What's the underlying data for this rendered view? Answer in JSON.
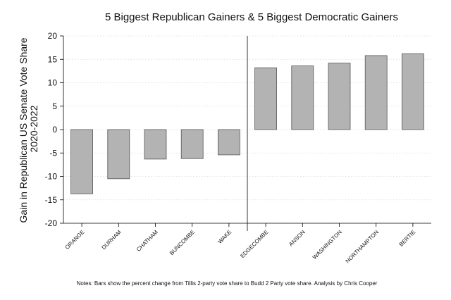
{
  "chart_data": {
    "type": "bar",
    "title": "5 Biggest Republican Gainers & 5 Biggest Democratic Gainers",
    "ylabel": [
      "Gain in Republican US Senate Vote Share",
      "2020-2022"
    ],
    "xlabel": "",
    "categories": [
      "ORANGE",
      "DURHAM",
      "CHATHAM",
      "BUNCOMBE",
      "WAKE",
      "EDGECOMBE",
      "ANSON",
      "WASHINGTON",
      "NORTHAMPTON",
      "BERTIE"
    ],
    "values": [
      -13.7,
      -10.5,
      -6.3,
      -6.2,
      -5.4,
      13.2,
      13.6,
      14.2,
      15.8,
      16.2
    ],
    "ylim": [
      -20,
      20
    ],
    "yticks": [
      -20,
      -15,
      -10,
      -5,
      0,
      5,
      10,
      15,
      20
    ],
    "grid": true,
    "separator_after_index": 4,
    "bar_color": "#b3b3b3",
    "note": "Notes: Bars show the percent change from Tillis 2-party vote share to Budd 2 Party vote share. Analysis by Chris Cooper"
  }
}
